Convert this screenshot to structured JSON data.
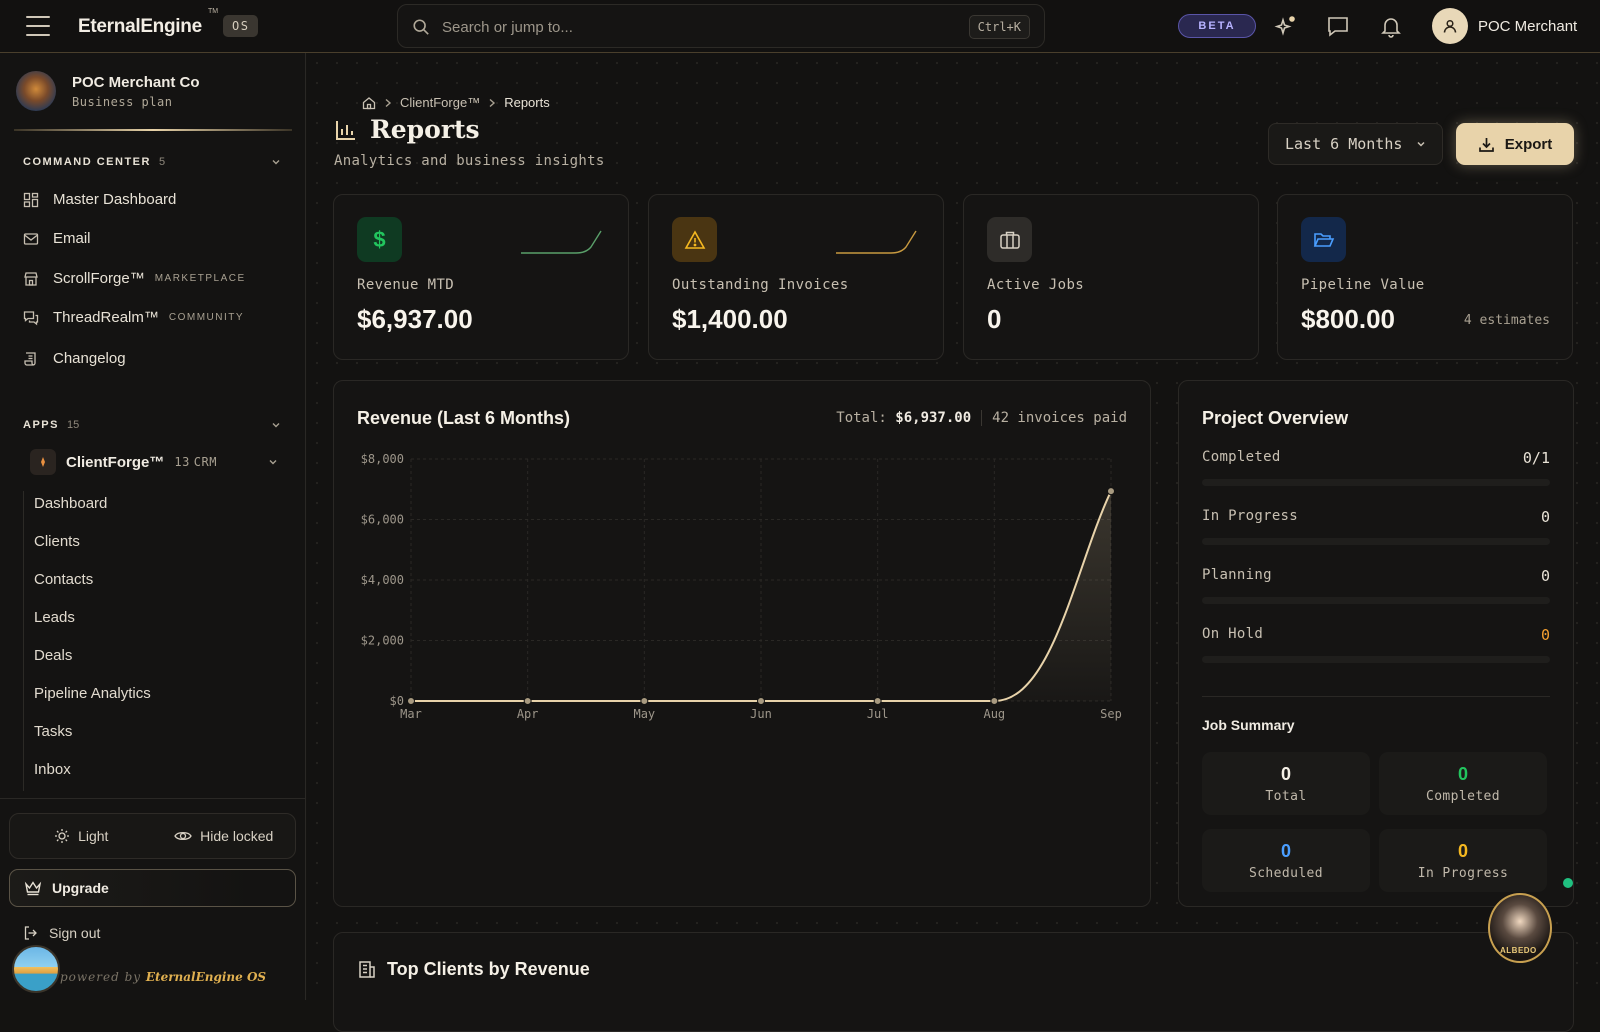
{
  "topbar": {
    "brand": "EternalEngine",
    "brand_tm": "TM",
    "os_badge": "OS",
    "search_placeholder": "Search or jump to...",
    "search_shortcut": "Ctrl+K",
    "beta": "BETA",
    "user_name": "POC Merchant"
  },
  "sidebar": {
    "org_name": "POC Merchant Co",
    "org_plan": "Business plan",
    "command_center": {
      "title": "COMMAND CENTER",
      "count": "5"
    },
    "nav": [
      {
        "label": "Master Dashboard",
        "tag": ""
      },
      {
        "label": "Email",
        "tag": ""
      },
      {
        "label": "ScrollForge™",
        "tag": "MARKETPLACE"
      },
      {
        "label": "ThreadRealm™",
        "tag": "COMMUNITY"
      },
      {
        "label": "Changelog",
        "tag": ""
      }
    ],
    "apps": {
      "title": "APPS",
      "count": "15"
    },
    "app": {
      "name": "ClientForge™",
      "count": "13",
      "type": "CRM"
    },
    "sub_items": [
      "Dashboard",
      "Clients",
      "Contacts",
      "Leads",
      "Deals",
      "Pipeline Analytics",
      "Tasks",
      "Inbox"
    ],
    "theme_light": "Light",
    "hide_locked": "Hide locked",
    "upgrade": "Upgrade",
    "sign_out": "Sign out",
    "powered_prefix": "powered by",
    "powered_brand": "EternalEngine OS"
  },
  "breadcrumb": {
    "app": "ClientForge™",
    "current": "Reports"
  },
  "page": {
    "title": "Reports",
    "subtitle": "Analytics and business insights",
    "period": "Last 6 Months",
    "export": "Export"
  },
  "kpis": [
    {
      "label": "Revenue MTD",
      "value": "$6,937.00",
      "note": ""
    },
    {
      "label": "Outstanding Invoices",
      "value": "$1,400.00",
      "note": ""
    },
    {
      "label": "Active Jobs",
      "value": "0",
      "note": ""
    },
    {
      "label": "Pipeline Value",
      "value": "$800.00",
      "note": "4 estimates"
    }
  ],
  "revenue_card": {
    "title": "Revenue (Last 6 Months)",
    "total_label": "Total:",
    "total_value": "$6,937.00",
    "invoices": "42 invoices paid"
  },
  "chart_data": {
    "type": "area",
    "categories": [
      "Mar",
      "Apr",
      "May",
      "Jun",
      "Jul",
      "Aug",
      "Sep"
    ],
    "values": [
      0,
      0,
      0,
      0,
      0,
      0,
      6937
    ],
    "title": "Revenue (Last 6 Months)",
    "ylim": [
      0,
      8000
    ],
    "yticks": [
      "$0",
      "$2,000",
      "$4,000",
      "$6,000",
      "$8,000"
    ],
    "ytick_values": [
      0,
      2000,
      4000,
      6000,
      8000
    ],
    "grid": true,
    "color": "#e8d3aa"
  },
  "project_overview": {
    "title": "Project Overview",
    "rows": [
      {
        "label": "Completed",
        "value": "0/1",
        "fill": 0
      },
      {
        "label": "In Progress",
        "value": "0",
        "fill": 0
      },
      {
        "label": "Planning",
        "value": "0",
        "fill": 0
      },
      {
        "label": "On Hold",
        "value": "0",
        "fill": 0
      }
    ],
    "job_summary_title": "Job Summary",
    "jobs": [
      {
        "value": "0",
        "label": "Total",
        "color": "#f5f0e6"
      },
      {
        "value": "0",
        "label": "Completed",
        "color": "#22c55e"
      },
      {
        "value": "0",
        "label": "Scheduled",
        "color": "#4a9eff"
      },
      {
        "value": "0",
        "label": "In Progress",
        "color": "#f5b820"
      }
    ]
  },
  "top_clients": {
    "title": "Top Clients by Revenue"
  },
  "assistant_label": "ALBEDO",
  "colors": {
    "accent": "#e8d3aa",
    "revenue_icon_bg": "#0f3a22",
    "invoice_icon_bg": "#4a3512",
    "jobs_icon_bg": "#2e2c29",
    "pipeline_icon_bg": "#13284a",
    "on_hold_value": "#f5a030"
  }
}
